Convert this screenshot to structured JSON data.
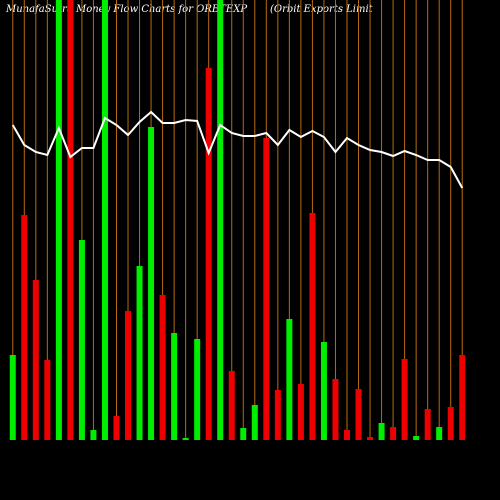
{
  "chart_data": {
    "type": "bar",
    "title": "MunafaSutra Money Flow Charts for ORBTEXP",
    "subtitle": "(Orbit Exports Limit",
    "categories": [
      null,
      null,
      null,
      null,
      null,
      null,
      null,
      null,
      null,
      null,
      null,
      null,
      null,
      null,
      null,
      null,
      null,
      null,
      null,
      null,
      null,
      null,
      null,
      null,
      null,
      null,
      null,
      null,
      null,
      null,
      null,
      null,
      null,
      null,
      null,
      null,
      null,
      null,
      null,
      null
    ],
    "values": [
      85,
      225,
      160,
      80,
      440,
      440,
      200,
      10,
      440,
      24,
      129,
      174,
      313,
      145,
      107,
      2,
      101,
      372,
      440,
      69,
      12,
      35,
      302,
      50,
      121,
      56,
      227,
      98,
      61,
      10,
      51,
      3,
      17,
      13,
      81,
      4,
      31,
      13,
      33,
      85
    ],
    "colors": [
      "#00ee00",
      "#ee0000",
      "#ee0000",
      "#ee0000",
      "#00ee00",
      "#ee0000",
      "#00ee00",
      "#00ee00",
      "#00ee00",
      "#ee0000",
      "#ee0000",
      "#00ee00",
      "#00ee00",
      "#ee0000",
      "#00ee00",
      "#00ee00",
      "#00ee00",
      "#ee0000",
      "#00ee00",
      "#ee0000",
      "#00ee00",
      "#00ee00",
      "#ee0000",
      "#ee0000",
      "#00ee00",
      "#ee0000",
      "#ee0000",
      "#00ee00",
      "#ee0000",
      "#ee0000",
      "#ee0000",
      "#ee0000",
      "#00ee00",
      "#ee0000",
      "#ee0000",
      "#00ee00",
      "#ee0000",
      "#00ee00",
      "#ee0000",
      "#ee0000"
    ],
    "line": {
      "color": "#ffffff",
      "values": [
        315,
        295,
        288,
        285,
        312,
        283,
        292,
        292,
        322,
        315,
        305,
        318,
        328,
        317,
        317,
        320,
        319,
        287,
        315,
        307,
        304,
        304,
        307,
        295,
        310,
        303,
        309,
        303,
        288,
        302,
        295,
        290,
        288,
        284,
        289,
        285,
        280,
        280,
        273,
        252
      ]
    },
    "ylim": [
      0,
      440
    ],
    "grid_color": "#b86a10"
  }
}
